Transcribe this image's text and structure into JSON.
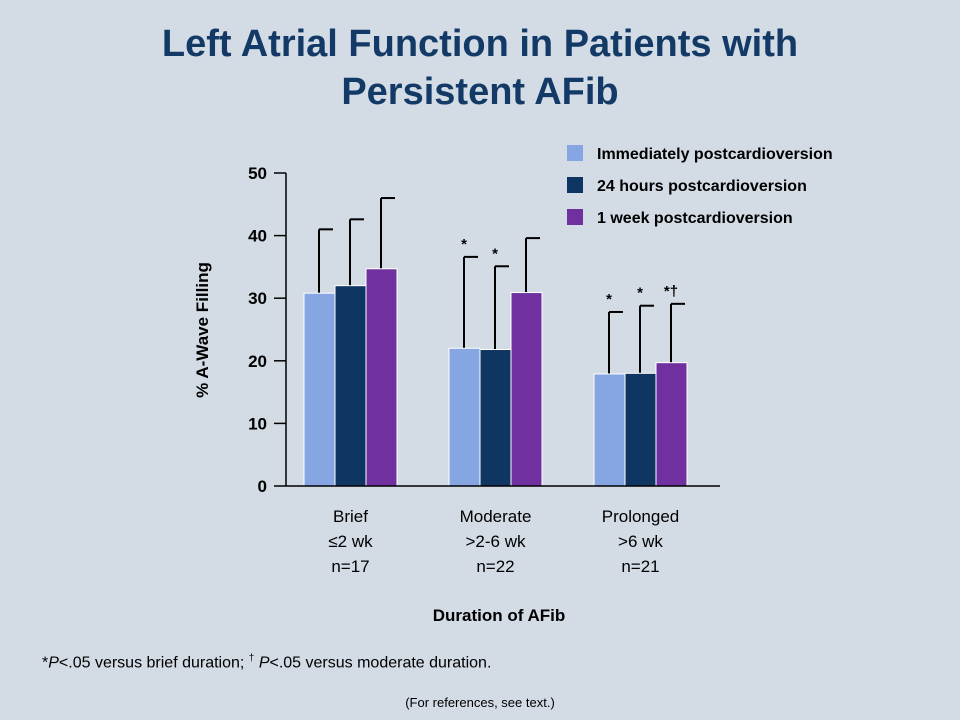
{
  "title": {
    "line1": "Left Atrial Function in Patients with",
    "line2": "Persistent AFib"
  },
  "chart_data": {
    "type": "bar",
    "ylabel": "% A-Wave Filling",
    "xlabel": "Duration of AFib",
    "ylim": [
      0,
      50
    ],
    "yticks": [
      0,
      10,
      20,
      30,
      40,
      50
    ],
    "grid": false,
    "legend_position": "top-right",
    "categories": [
      [
        "Brief",
        "≤2 wk",
        "n=17"
      ],
      [
        "Moderate",
        ">2-6 wk",
        "n=22"
      ],
      [
        "Prolonged",
        ">6 wk",
        "n=21"
      ]
    ],
    "series": [
      {
        "name": "Immediately postcardioversion",
        "color": "#86a5e3",
        "values": [
          30.8,
          22.0,
          17.9
        ],
        "error_upper": [
          41.0,
          36.6,
          27.8
        ],
        "annotations": [
          "",
          "*",
          "*"
        ]
      },
      {
        "name": "24 hours postcardioversion",
        "color": "#0f3563",
        "values": [
          32.0,
          21.8,
          18.0
        ],
        "error_upper": [
          42.6,
          35.1,
          28.8
        ],
        "annotations": [
          "",
          "*",
          "*"
        ]
      },
      {
        "name": "1 week postcardioversion",
        "color": "#7030a0",
        "values": [
          34.7,
          30.9,
          19.7
        ],
        "error_upper": [
          46.0,
          39.6,
          29.1
        ],
        "annotations": [
          "",
          "",
          "*†"
        ]
      }
    ]
  },
  "footnote": {
    "star": "*",
    "p1": "P",
    "text1": "<.05 versus brief duration; ",
    "dagger": "†",
    "p2": "P",
    "text2": "<.05 versus moderate duration."
  },
  "references": "(For references, see text.)"
}
